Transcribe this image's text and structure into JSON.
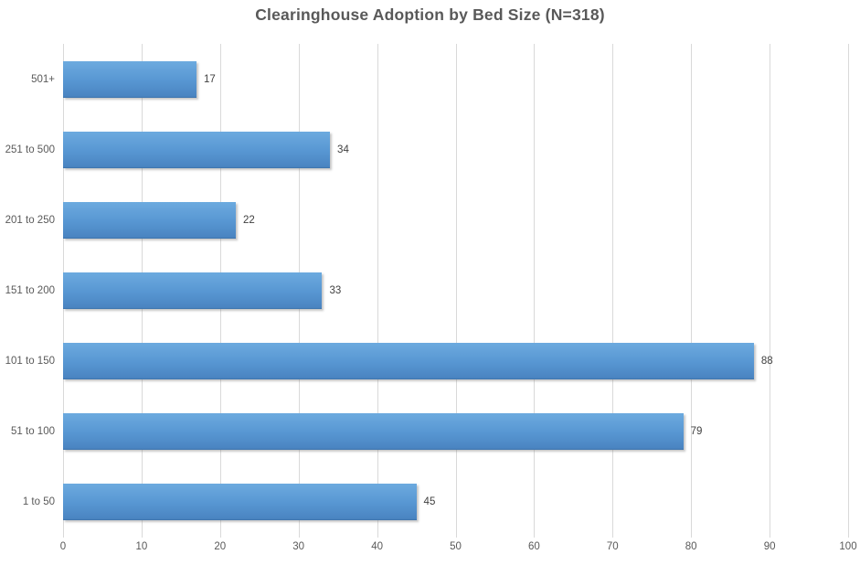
{
  "chart_data": {
    "type": "bar",
    "orientation": "horizontal",
    "title": "Clearinghouse Adoption by Bed Size (N=318)",
    "categories": [
      "501+",
      "251 to 500",
      "201 to 250",
      "151 to 200",
      "101 to 150",
      "51 to 100",
      "1 to 50"
    ],
    "values": [
      17,
      34,
      22,
      33,
      88,
      79,
      45
    ],
    "data_labels": [
      "17",
      "34",
      "22",
      "33",
      "88",
      "79",
      "45"
    ],
    "xlabel": "",
    "ylabel": "",
    "xlim": [
      0,
      100
    ],
    "x_ticks": [
      0,
      10,
      20,
      30,
      40,
      50,
      60,
      70,
      80,
      90,
      100
    ],
    "grid": "vertical-on",
    "legend": "none",
    "colors": {
      "bar_top": "#6caadf",
      "bar_mid": "#5796d2",
      "bar_bottom": "#4a84c1",
      "bar_edge": "#3c71a8",
      "grid": "#d9d9d9",
      "title": "#595959",
      "axis_labels": "#595959",
      "value_labels": "#404040"
    }
  }
}
